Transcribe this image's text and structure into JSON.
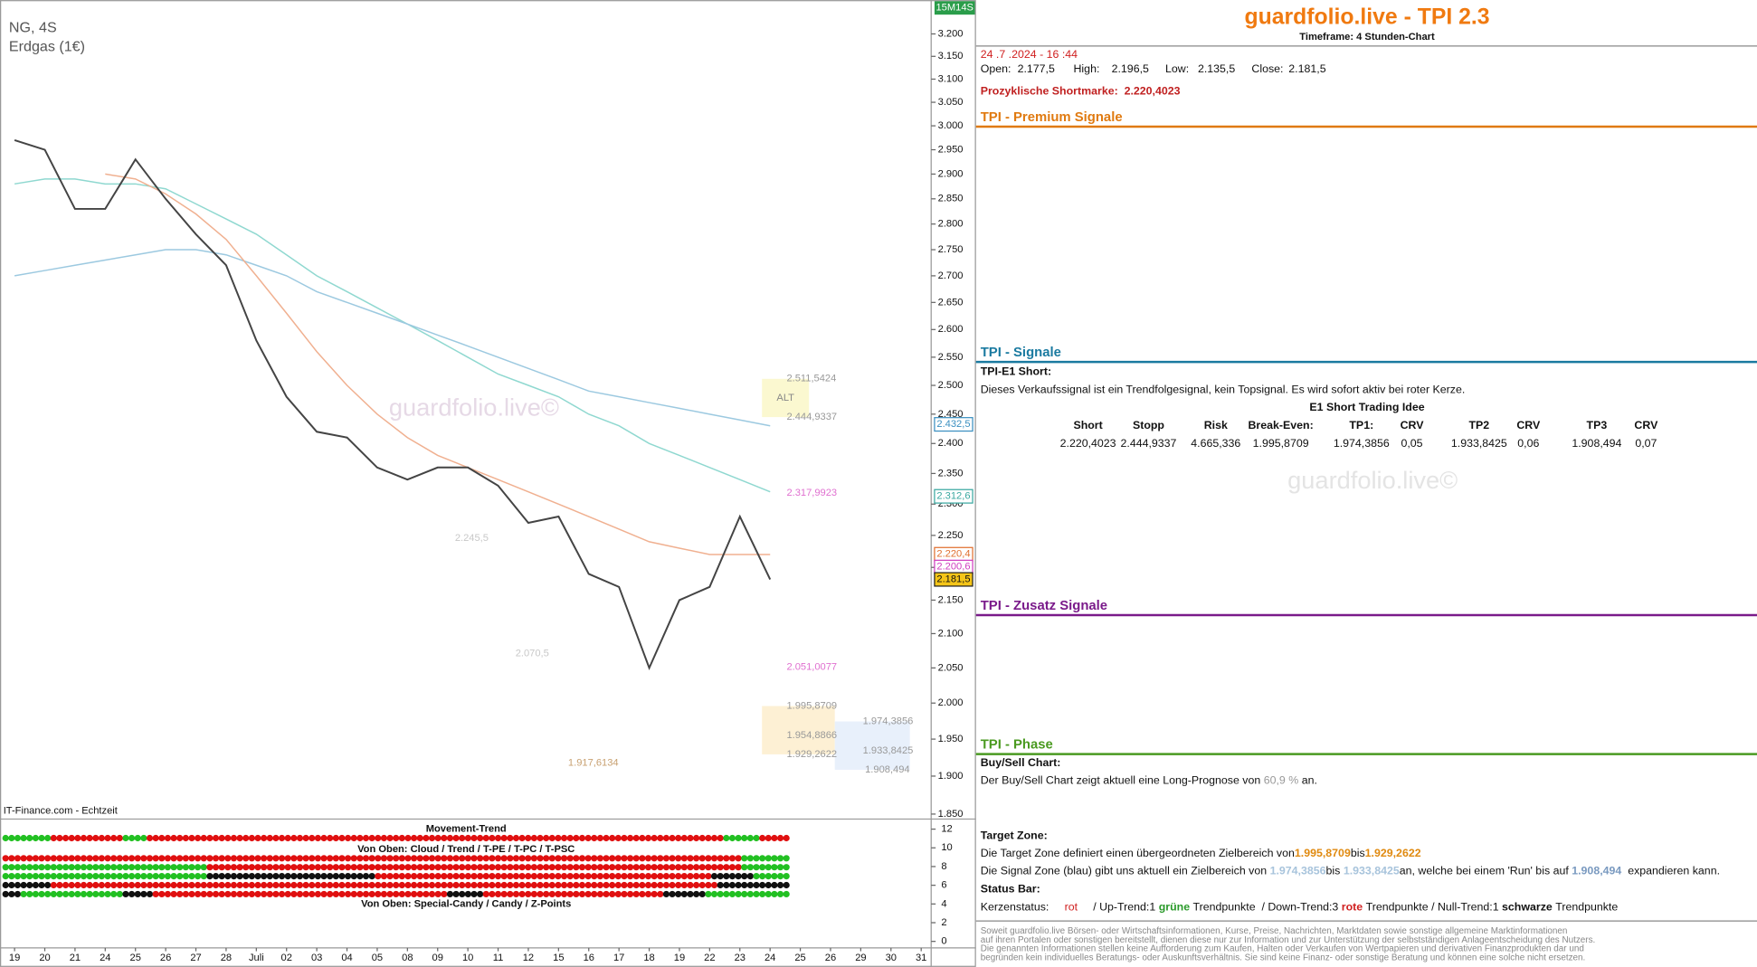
{
  "chart_data": {
    "type": "line",
    "symbol": "NG, 4S",
    "instrument": "Erdgas (1€)",
    "source": "IT-Finance.com - Echtzeit",
    "watermark": "guardfolio.live©",
    "timer": "15M14S",
    "zone_label": "ALT",
    "log_scale": true,
    "categories": [
      "19",
      "20",
      "21",
      "24",
      "25",
      "26",
      "27",
      "28",
      "Juli",
      "02",
      "03",
      "04",
      "05",
      "08",
      "09",
      "10",
      "11",
      "12",
      "15",
      "16",
      "17",
      "18",
      "19",
      "22",
      "23",
      "24",
      "25",
      "26",
      "29",
      "30",
      "31"
    ],
    "series": [
      {
        "color": "#8fd8d0",
        "values": [
          2.88,
          2.89,
          2.89,
          2.88,
          2.88,
          2.87,
          2.84,
          2.81,
          2.78,
          2.74,
          2.7,
          2.67,
          2.64,
          2.61,
          2.58,
          2.55,
          2.52,
          2.5,
          2.48,
          2.45,
          2.43,
          2.4,
          2.38,
          2.36,
          2.34,
          2.32,
          null,
          null,
          null,
          null,
          null
        ]
      },
      {
        "color": "#9cc9e0",
        "values": [
          2.7,
          2.71,
          2.72,
          2.73,
          2.74,
          2.75,
          2.75,
          2.74,
          2.72,
          2.7,
          2.67,
          2.65,
          2.63,
          2.61,
          2.59,
          2.57,
          2.55,
          2.53,
          2.51,
          2.49,
          2.48,
          2.47,
          2.46,
          2.45,
          2.44,
          2.43,
          null,
          null,
          null,
          null,
          null
        ]
      },
      {
        "color": "#f0b090",
        "values": [
          null,
          null,
          null,
          2.9,
          2.89,
          2.86,
          2.82,
          2.77,
          2.7,
          2.63,
          2.56,
          2.5,
          2.45,
          2.41,
          2.38,
          2.36,
          2.34,
          2.32,
          2.3,
          2.28,
          2.26,
          2.24,
          2.23,
          2.22,
          2.22,
          2.22,
          null,
          null,
          null,
          null,
          null
        ]
      },
      {
        "color": "#444444",
        "values": [
          2.97,
          2.95,
          2.83,
          2.83,
          2.93,
          2.85,
          2.78,
          2.72,
          2.58,
          2.48,
          2.42,
          2.41,
          2.36,
          2.34,
          2.36,
          2.36,
          2.33,
          2.27,
          2.28,
          2.19,
          2.17,
          2.05,
          2.15,
          2.17,
          2.28,
          2.1815,
          null,
          null,
          null,
          null,
          null
        ]
      }
    ],
    "ylim": [
      1.845,
      3.277
    ],
    "yticks": [
      {
        "value": 3.2,
        "label": "3.200"
      },
      {
        "value": 3.15,
        "label": "3.150"
      },
      {
        "value": 3.1,
        "label": "3.100"
      },
      {
        "value": 3.05,
        "label": "3.050"
      },
      {
        "value": 3.0,
        "label": "3.000"
      },
      {
        "value": 2.95,
        "label": "2.950"
      },
      {
        "value": 2.9,
        "label": "2.900"
      },
      {
        "value": 2.85,
        "label": "2.850"
      },
      {
        "value": 2.8,
        "label": "2.800"
      },
      {
        "value": 2.75,
        "label": "2.750"
      },
      {
        "value": 2.7,
        "label": "2.700"
      },
      {
        "value": 2.65,
        "label": "2.650"
      },
      {
        "value": 2.6,
        "label": "2.600"
      },
      {
        "value": 2.55,
        "label": "2.550"
      },
      {
        "value": 2.5,
        "label": "2.500"
      },
      {
        "value": 2.45,
        "label": "2.450"
      },
      {
        "value": 2.4,
        "label": "2.400"
      },
      {
        "value": 2.35,
        "label": "2.350"
      },
      {
        "value": 2.3,
        "label": "2.300"
      },
      {
        "value": 2.25,
        "label": "2.250"
      },
      {
        "value": 2.2,
        "label": "2.200"
      },
      {
        "value": 2.15,
        "label": "2.150"
      },
      {
        "value": 2.1,
        "label": "2.100"
      },
      {
        "value": 2.05,
        "label": "2.050"
      },
      {
        "value": 2.0,
        "label": "2.000"
      },
      {
        "value": 1.95,
        "label": "1.950"
      },
      {
        "value": 1.9,
        "label": "1.900"
      },
      {
        "value": 1.85,
        "label": "1.850"
      }
    ],
    "price_tags": [
      {
        "value": 2.4325,
        "label": "2.432,5",
        "color": "#3a8fc0"
      },
      {
        "value": 2.3126,
        "label": "2.312,6",
        "color": "#3aa8a0"
      },
      {
        "value": 2.2204,
        "label": "2.220,4",
        "color": "#e07030"
      },
      {
        "value": 2.2006,
        "label": "2.200,6",
        "color": "#d040c0"
      },
      {
        "value": 2.1815,
        "label": "2.181,5",
        "color": "#222222"
      }
    ],
    "annotations": [
      {
        "value": 2.5115424,
        "label": "2.511,5424",
        "color": "#999999"
      },
      {
        "value": 2.4449337,
        "label": "2.444,9337",
        "color": "#999999"
      },
      {
        "value": 2.3179923,
        "label": "2.317,9923",
        "color": "#e070d0"
      },
      {
        "value": 2.0510077,
        "label": "2.051,0077",
        "color": "#e070d0"
      },
      {
        "value": 1.9958709,
        "label": "1.995,8709",
        "color": "#999999"
      },
      {
        "value": 1.9548866,
        "label": "1.954,8866",
        "color": "#999999"
      },
      {
        "value": 1.9292622,
        "label": "1.929,2622",
        "color": "#999999"
      },
      {
        "value": 1.9743856,
        "label": "1.974,3856",
        "color": "#999999"
      },
      {
        "value": 1.9338425,
        "label": "1.933,8425",
        "color": "#999999"
      },
      {
        "value": 1.908494,
        "label": "1.908,494",
        "color": "#999999"
      },
      {
        "value": 2.2455,
        "label": "2.245,5",
        "color": "#c8c8c8"
      },
      {
        "value": 2.0705,
        "label": "2.070,5",
        "color": "#c8c8c8"
      },
      {
        "value": 1.9176134,
        "label": "1.917,6134",
        "color": "#c8a070"
      }
    ],
    "indicator": {
      "titles": [
        "Movement-Trend",
        "Von Oben: Cloud / Trend / T-PE / T-PC / T-PSC",
        "Von Oben: Special-Candy / Candy / Z-Points"
      ],
      "yticks": [
        12,
        10,
        8,
        6,
        4,
        2,
        0
      ],
      "rows": [
        [
          {
            "state": "green",
            "count": 8
          },
          {
            "state": "red",
            "count": 12
          },
          {
            "state": "green",
            "count": 4
          },
          {
            "state": "red",
            "count": 96
          },
          {
            "state": "green",
            "count": 6
          },
          {
            "state": "red",
            "count": 5
          }
        ],
        [
          {
            "state": "red",
            "count": 123
          },
          {
            "state": "green",
            "count": 8
          }
        ],
        [
          {
            "state": "green",
            "count": 34
          },
          {
            "state": "red",
            "count": 89
          },
          {
            "state": "green",
            "count": 8
          }
        ],
        [
          {
            "state": "green",
            "count": 34
          },
          {
            "state": "black",
            "count": 28
          },
          {
            "state": "red",
            "count": 56
          },
          {
            "state": "black",
            "count": 7
          },
          {
            "state": "green",
            "count": 6
          }
        ],
        [
          {
            "state": "black",
            "count": 8
          },
          {
            "state": "red",
            "count": 111
          },
          {
            "state": "black",
            "count": 12
          }
        ],
        [
          {
            "state": "black",
            "count": 3
          },
          {
            "state": "green",
            "count": 17
          },
          {
            "state": "black",
            "count": 5
          },
          {
            "state": "red",
            "count": 49
          },
          {
            "state": "black",
            "count": 6
          },
          {
            "state": "red",
            "count": 30
          },
          {
            "state": "black",
            "count": 7
          },
          {
            "state": "green",
            "count": 14
          }
        ]
      ]
    }
  },
  "panel": {
    "title": "guardfolio.live - TPI 2.3",
    "timeframe": "Timeframe: 4 Stunden-Chart",
    "datetime": "24 .7 .2024 - 16 :44",
    "ohlc": [
      "Open:",
      "2.177,5",
      "High:",
      "2.196,5",
      "Low:",
      "2.135,5",
      "Close:",
      "2.181,5"
    ],
    "shortmark": [
      "Prozyklische Shortmarke:",
      "2.220,4023"
    ],
    "sections": [
      "TPI - Premium Signale",
      "TPI - Signale",
      "TPI - Zusatz Signale",
      "TPI - Phase"
    ],
    "signal_title": "TPI-E1 Short:",
    "signal_text": "Dieses Verkaufssignal ist ein Trendfolgesignal, kein Topsignal. Es wird sofort aktiv bei roter Kerze.",
    "table": {
      "title": "E1 Short Trading Idee",
      "header": [
        "Short",
        "Stopp",
        "Risk",
        "Break-Even:",
        "TP1:",
        "CRV",
        "TP2",
        "CRV",
        "TP3",
        "CRV"
      ],
      "row": [
        "2.220,4023",
        "2.444,9337",
        "4.665,336",
        "1.995,8709",
        "1.974,3856",
        "0,05",
        "1.933,8425",
        "0,06",
        "1.908,494",
        "0,07"
      ]
    },
    "watermark": "guardfolio.live©",
    "buysell_title": "Buy/Sell Chart:",
    "buysell_text": [
      "Der Buy/Sell Chart zeigt aktuell eine Long-Prognose von",
      "60,9 %",
      "an."
    ],
    "target_title": "Target Zone:",
    "target_text": [
      "Die Target Zone definiert einen übergeordneten Zielbereich von",
      "1.995,8709",
      "bis",
      "1.929,2622"
    ],
    "signal_zone_text": [
      "Die Signal Zone (blau) gibt uns aktuell ein Zielbereich von",
      "1.974,3856",
      "bis",
      "1.933,8425",
      "an, welche bei einem 'Run' bis auf",
      "1.908,494",
      "expandieren kann."
    ],
    "status_title": "Status Bar:",
    "status_text": [
      "Kerzenstatus:",
      "rot",
      "/ Up-Trend:1",
      "grüne",
      "Trendpunkte",
      "/ Down-Trend:3",
      "rote",
      "Trendpunkte",
      "/ Null-Trend:1",
      "schwarze",
      "Trendpunkte"
    ],
    "disclaimer": [
      "Soweit guardfolio.live Börsen- oder Wirtschaftsinformationen, Kurse, Preise, Nachrichten, Marktdaten sowie sonstige allgemeine Marktinformationen",
      "auf ihren Portalen oder sonstigen bereitstellt, dienen diese nur zur Information und zur Unterstützung der selbstständigen Anlageentscheidung des Nutzers.",
      "Die genannten Informationen stellen keine Aufforderung zum Kaufen, Halten oder Verkaufen von Wertpapieren und derivativen Finanzprodukten dar und",
      "begründen kein individuelles Beratungs- oder Auskunftsverhältnis. Sie sind keine Finanz- oder sonstige Beratung und können eine solche nicht ersetzen."
    ]
  }
}
